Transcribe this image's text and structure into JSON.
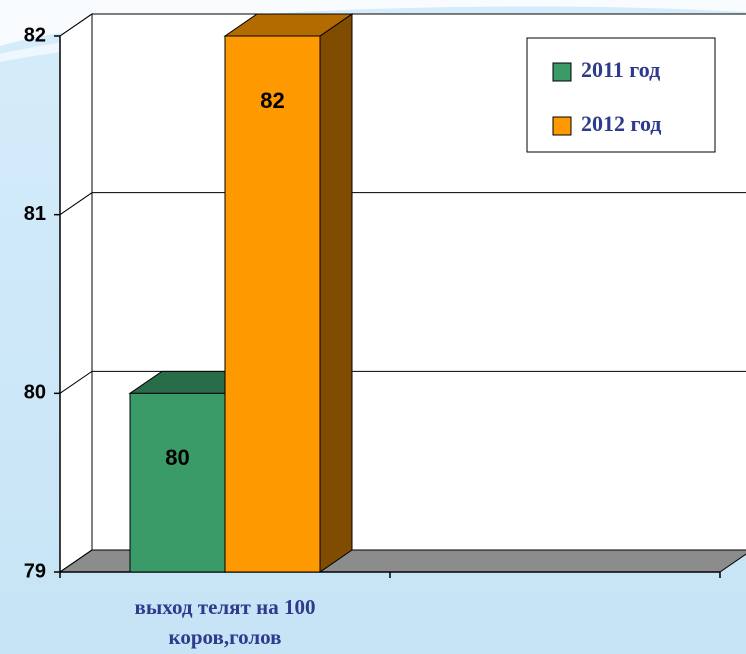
{
  "chart_data": {
    "type": "bar3d",
    "categories": [
      "выход телят на 100 коров,голов",
      null
    ],
    "series": [
      {
        "name": "2011 год",
        "color": "#3a9a68",
        "values": [
          80,
          null
        ]
      },
      {
        "name": "2012 год",
        "color": "#ff9900",
        "values": [
          82,
          null
        ]
      }
    ],
    "ylim": [
      79,
      82
    ],
    "yticks": [
      79,
      80,
      81,
      82
    ],
    "grid": true,
    "legend": "top-right"
  }
}
